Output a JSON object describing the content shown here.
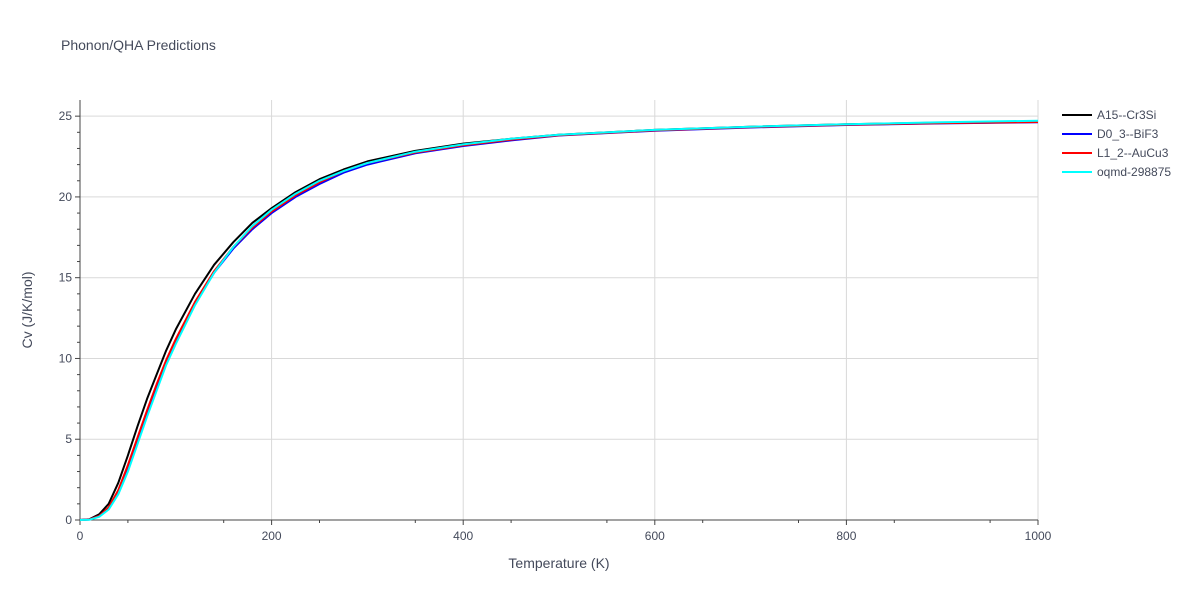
{
  "chart_data": {
    "type": "line",
    "title": "Phonon/QHA Predictions",
    "xlabel": "Temperature (K)",
    "ylabel": "Cv (J/K/mol)",
    "xlim": [
      0,
      1000
    ],
    "ylim": [
      0,
      26
    ],
    "x_ticks": [
      0,
      200,
      400,
      600,
      800,
      1000
    ],
    "y_ticks": [
      0,
      5,
      10,
      15,
      20,
      25
    ],
    "grid": true,
    "legend_position": "top-right outside",
    "x": [
      0,
      10,
      20,
      30,
      40,
      50,
      60,
      70,
      80,
      90,
      100,
      120,
      140,
      160,
      180,
      200,
      225,
      250,
      275,
      300,
      350,
      400,
      450,
      500,
      600,
      700,
      800,
      900,
      1000
    ],
    "series": [
      {
        "name": "A15--Cr3Si",
        "color": "#000000",
        "values": [
          0,
          0.05,
          0.35,
          1.0,
          2.3,
          4.0,
          5.8,
          7.5,
          9.0,
          10.5,
          11.8,
          14.0,
          15.8,
          17.2,
          18.4,
          19.3,
          20.3,
          21.1,
          21.7,
          22.2,
          22.85,
          23.3,
          23.6,
          23.85,
          24.15,
          24.35,
          24.5,
          24.6,
          24.65
        ]
      },
      {
        "name": "D0_3--BiF3",
        "color": "#0000ff",
        "values": [
          0,
          0.03,
          0.25,
          0.75,
          1.8,
          3.3,
          5.0,
          6.7,
          8.3,
          9.8,
          11.1,
          13.4,
          15.3,
          16.8,
          18.0,
          19.0,
          20.0,
          20.8,
          21.5,
          22.0,
          22.7,
          23.15,
          23.5,
          23.8,
          24.1,
          24.3,
          24.45,
          24.55,
          24.62
        ]
      },
      {
        "name": "L1_2--AuCu3",
        "color": "#ff0000",
        "values": [
          0,
          0.03,
          0.25,
          0.78,
          1.85,
          3.4,
          5.1,
          6.8,
          8.4,
          9.9,
          11.2,
          13.5,
          15.4,
          16.9,
          18.1,
          19.1,
          20.1,
          20.9,
          21.6,
          22.1,
          22.75,
          23.2,
          23.55,
          23.82,
          24.12,
          24.32,
          24.47,
          24.57,
          24.64
        ]
      },
      {
        "name": "oqmd-298875",
        "color": "#00ffff",
        "values": [
          0,
          0.02,
          0.2,
          0.65,
          1.6,
          3.0,
          4.7,
          6.4,
          8.0,
          9.6,
          10.9,
          13.3,
          15.3,
          16.9,
          18.2,
          19.2,
          20.2,
          21.0,
          21.6,
          22.1,
          22.8,
          23.25,
          23.6,
          23.85,
          24.15,
          24.35,
          24.5,
          24.62,
          24.72
        ]
      }
    ]
  }
}
